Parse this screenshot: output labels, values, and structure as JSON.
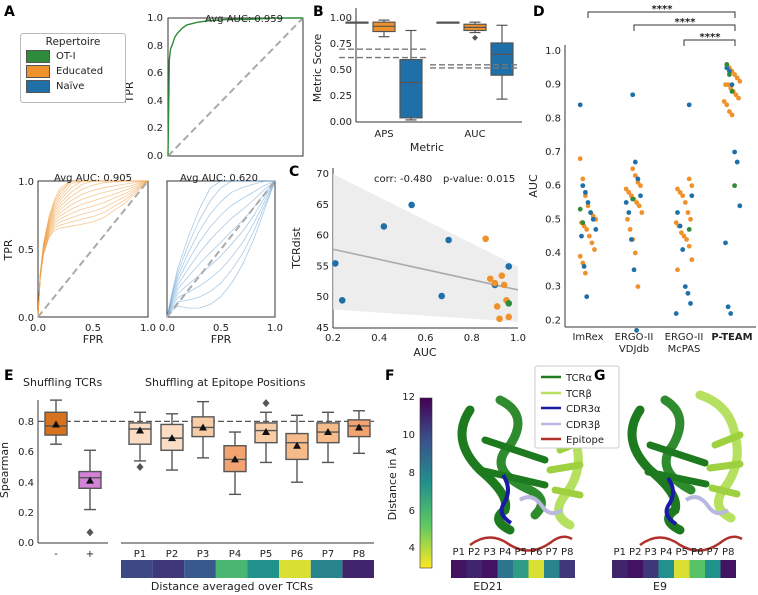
{
  "panels": {
    "A": {
      "letter": "A",
      "legend": {
        "title": "Repertoire",
        "items": [
          {
            "label": "OT-I",
            "color": "#2e8b3a"
          },
          {
            "label": "Educated",
            "color": "#f0922b"
          },
          {
            "label": "Naïve",
            "color": "#1f6fa8"
          }
        ]
      },
      "top_title": "Avg AUC: 0.959",
      "left_title": "Avg AUC: 0.905",
      "right_title": "Avg AUC: 0.620",
      "tpr_label": "TPR",
      "fpr_label": "FPR",
      "y_ticks": [
        "0.0",
        "0.2",
        "0.4",
        "0.6",
        "0.8",
        "1.0"
      ],
      "y_ticks_short": [
        "0.0",
        "0.5",
        "1.0"
      ],
      "x_ticks": [
        "0.0",
        "0.5",
        "1.0"
      ]
    },
    "B": {
      "letter": "B",
      "ylabel": "Metric Score",
      "xlabel": "Metric",
      "categories": [
        "APS",
        "AUC"
      ],
      "y_ticks": [
        "0.00",
        "0.25",
        "0.50",
        "0.75",
        "1.00"
      ]
    },
    "C": {
      "letter": "C",
      "corr_text": "corr: -0.480",
      "pvalue_text": "p-value: 0.015",
      "ylabel": "TCRdist",
      "xlabel": "AUC",
      "y_ticks": [
        "45",
        "50",
        "55",
        "60",
        "65",
        "70"
      ],
      "x_ticks": [
        "0.2",
        "0.4",
        "0.6",
        "0.8",
        "1.0"
      ]
    },
    "D": {
      "letter": "D",
      "ylabel": "AUC",
      "stars": [
        "****",
        "****",
        "****"
      ],
      "y_ticks": [
        "0.2",
        "0.3",
        "0.4",
        "0.5",
        "0.6",
        "0.7",
        "0.8",
        "0.9",
        "1.0"
      ],
      "categories": [
        {
          "line1": "ImRex",
          "line2": ""
        },
        {
          "line1": "ERGO-II",
          "line2": "VDJdb"
        },
        {
          "line1": "ERGO-II",
          "line2": "McPAS"
        },
        {
          "line1": "P-TEAM",
          "line2": ""
        }
      ]
    },
    "E": {
      "letter": "E",
      "ylabel": "Spearman",
      "left_title": "Shuffling TCRs",
      "right_title": "Shuffling at Epitope Positions",
      "left_ticks": [
        "-",
        "+"
      ],
      "positions": [
        "P1",
        "P2",
        "P3",
        "P4",
        "P5",
        "P6",
        "P7",
        "P8"
      ],
      "y_ticks": [
        "0.0",
        "0.2",
        "0.4",
        "0.6",
        "0.8"
      ],
      "bottom_label": "Distance averaged over TCRs"
    },
    "F": {
      "letter": "F",
      "colorbar_label": "Distance in Å",
      "colorbar_ticks": [
        "4",
        "6",
        "8",
        "10",
        "12"
      ],
      "struct_legend": [
        {
          "label": "TCRα",
          "color": "#1e7a1e"
        },
        {
          "label": "TCRβ",
          "color": "#b5e060"
        },
        {
          "label": "CDR3α",
          "color": "#1a1aa8"
        },
        {
          "label": "CDR3β",
          "color": "#b8b8e0"
        },
        {
          "label": "Epitope",
          "color": "#b0302a"
        }
      ],
      "positions": [
        "P1",
        "P2",
        "P3",
        "P4",
        "P5",
        "P6",
        "P7",
        "P8"
      ],
      "name": "ED21"
    },
    "G": {
      "letter": "G",
      "positions": [
        "P1",
        "P2",
        "P3",
        "P4",
        "P5",
        "P6",
        "P7",
        "P8"
      ],
      "name": "E9"
    }
  },
  "chart_data": [
    {
      "id": "A-top",
      "type": "line",
      "title": "Avg AUC: 0.959",
      "xlabel": "",
      "ylabel": "TPR",
      "xlim": [
        0,
        1
      ],
      "ylim": [
        0,
        1
      ],
      "series": [
        {
          "name": "OT-I",
          "x": [
            0,
            0.01,
            0.02,
            0.03,
            0.05,
            0.07,
            0.09,
            0.11,
            0.14,
            0.18,
            0.22,
            0.3,
            0.45,
            0.6,
            0.8,
            1.0
          ],
          "y": [
            0,
            0.7,
            0.78,
            0.8,
            0.86,
            0.89,
            0.91,
            0.93,
            0.95,
            0.96,
            0.97,
            0.98,
            0.99,
            0.99,
            1.0,
            1.0
          ]
        },
        {
          "name": "chance",
          "x": [
            0,
            1
          ],
          "y": [
            0,
            1
          ]
        }
      ]
    },
    {
      "id": "A-left",
      "type": "line",
      "title": "Avg AUC: 0.905",
      "xlabel": "FPR",
      "ylabel": "TPR",
      "xlim": [
        0,
        1
      ],
      "ylim": [
        0,
        1
      ],
      "series": [
        {
          "name": "Educated (mean)",
          "x": [
            0,
            0.02,
            0.05,
            0.1,
            0.15,
            0.2,
            0.3,
            0.4,
            0.5,
            0.6,
            0.8,
            1.0
          ],
          "y": [
            0,
            0.3,
            0.5,
            0.66,
            0.75,
            0.8,
            0.87,
            0.92,
            0.95,
            0.97,
            0.99,
            1.0
          ]
        },
        {
          "name": "chance",
          "x": [
            0,
            1
          ],
          "y": [
            0,
            1
          ]
        }
      ]
    },
    {
      "id": "A-right",
      "type": "line",
      "title": "Avg AUC: 0.620",
      "xlabel": "FPR",
      "ylabel": "",
      "xlim": [
        0,
        1
      ],
      "ylim": [
        0,
        1
      ],
      "series": [
        {
          "name": "Naïve (mean)",
          "x": [
            0,
            0.05,
            0.1,
            0.2,
            0.3,
            0.4,
            0.5,
            0.6,
            0.7,
            0.8,
            0.9,
            1.0
          ],
          "y": [
            0,
            0.12,
            0.22,
            0.33,
            0.43,
            0.52,
            0.6,
            0.68,
            0.75,
            0.83,
            0.92,
            1.0
          ]
        },
        {
          "name": "chance",
          "x": [
            0,
            1
          ],
          "y": [
            0,
            1
          ]
        }
      ]
    },
    {
      "id": "B",
      "type": "box",
      "xlabel": "Metric",
      "ylabel": "Metric Score",
      "ylim": [
        -0.02,
        1.02
      ],
      "categories": [
        "APS",
        "AUC"
      ],
      "series": [
        {
          "name": "OT-I",
          "color": "#2e8b3a",
          "boxes": [
            {
              "min": 0.96,
              "q1": 0.96,
              "median": 0.96,
              "q3": 0.96,
              "max": 0.96
            },
            {
              "min": 0.96,
              "q1": 0.96,
              "median": 0.96,
              "q3": 0.96,
              "max": 0.96
            }
          ]
        },
        {
          "name": "Educated",
          "color": "#f0922b",
          "boxes": [
            {
              "min": 0.82,
              "q1": 0.87,
              "median": 0.92,
              "q3": 0.96,
              "max": 0.98
            },
            {
              "min": 0.86,
              "q1": 0.88,
              "median": 0.91,
              "q3": 0.94,
              "max": 0.96,
              "outliers": [
                0.81
              ]
            }
          ]
        },
        {
          "name": "Naïve",
          "color": "#1f6fa8",
          "boxes": [
            {
              "min": 0.02,
              "q1": 0.04,
              "median": 0.38,
              "q3": 0.6,
              "max": 0.88
            },
            {
              "min": 0.22,
              "q1": 0.45,
              "median": 0.65,
              "q3": 0.76,
              "max": 0.93
            }
          ]
        }
      ],
      "reference_lines": [
        {
          "category": "APS",
          "values": [
            0.7,
            0.62
          ]
        },
        {
          "category": "AUC",
          "values": [
            0.55,
            0.52
          ]
        }
      ]
    },
    {
      "id": "C",
      "type": "scatter",
      "xlabel": "AUC",
      "ylabel": "TCRdist",
      "xlim": [
        0.2,
        1.0
      ],
      "ylim": [
        45,
        71
      ],
      "points": [
        {
          "x": 0.21,
          "y": 55.5,
          "group": "Naïve"
        },
        {
          "x": 0.24,
          "y": 49.5,
          "group": "Naïve"
        },
        {
          "x": 0.42,
          "y": 61.5,
          "group": "Naïve"
        },
        {
          "x": 0.54,
          "y": 65,
          "group": "Naïve"
        },
        {
          "x": 0.67,
          "y": 50.2,
          "group": "Naïve"
        },
        {
          "x": 0.7,
          "y": 59.3,
          "group": "Naïve"
        },
        {
          "x": 0.86,
          "y": 59.5,
          "group": "Educated"
        },
        {
          "x": 0.88,
          "y": 53,
          "group": "Educated"
        },
        {
          "x": 0.9,
          "y": 52,
          "group": "Naïve"
        },
        {
          "x": 0.91,
          "y": 48.5,
          "group": "Educated"
        },
        {
          "x": 0.92,
          "y": 46.5,
          "group": "Educated"
        },
        {
          "x": 0.93,
          "y": 53.5,
          "group": "Educated"
        },
        {
          "x": 0.94,
          "y": 52,
          "group": "Educated"
        },
        {
          "x": 0.95,
          "y": 49.5,
          "group": "Educated"
        },
        {
          "x": 0.96,
          "y": 46.8,
          "group": "Educated"
        },
        {
          "x": 0.96,
          "y": 55,
          "group": "Naïve"
        },
        {
          "x": 0.96,
          "y": 49,
          "group": "OT-I"
        },
        {
          "x": 0.9,
          "y": 52.3,
          "group": "Educated"
        }
      ],
      "regression": {
        "x": [
          0.2,
          1.0
        ],
        "y": [
          57.8,
          51.2
        ]
      }
    },
    {
      "id": "D",
      "type": "strip",
      "ylabel": "AUC",
      "ylim": [
        0.18,
        1.0
      ],
      "categories": [
        "ImRex",
        "ERGO-II VDJdb",
        "ERGO-II McPAS",
        "P-TEAM"
      ],
      "groups": {
        "ImRex": {
          "Naïve": [
            0.84,
            0.6,
            0.58,
            0.55,
            0.52,
            0.5,
            0.47,
            0.45,
            0.36,
            0.27
          ],
          "Educated": [
            0.68,
            0.62,
            0.57,
            0.54,
            0.52,
            0.51,
            0.5,
            0.49,
            0.48,
            0.47,
            0.45,
            0.43,
            0.41,
            0.39,
            0.37,
            0.34
          ],
          "OT-I": [
            0.53,
            0.49
          ]
        },
        "ERGO-II VDJdb": {
          "Naïve": [
            0.87,
            0.67,
            0.62,
            0.57,
            0.55,
            0.52,
            0.44,
            0.35,
            0.17
          ],
          "Educated": [
            0.65,
            0.63,
            0.61,
            0.6,
            0.59,
            0.58,
            0.57,
            0.56,
            0.55,
            0.54,
            0.52,
            0.5,
            0.47,
            0.44,
            0.4,
            0.3
          ],
          "OT-I": [
            0.56
          ]
        },
        "ERGO-II McPAS": {
          "Naïve": [
            0.84,
            0.57,
            0.52,
            0.48,
            0.41,
            0.3,
            0.28,
            0.25,
            0.22
          ],
          "Educated": [
            0.62,
            0.6,
            0.59,
            0.58,
            0.57,
            0.55,
            0.52,
            0.5,
            0.49,
            0.48,
            0.46,
            0.45,
            0.44,
            0.42,
            0.38,
            0.35
          ],
          "OT-I": [
            0.47
          ]
        },
        "P-TEAM": {
          "Naïve": [
            0.95,
            0.94,
            0.9,
            0.7,
            0.67,
            0.54,
            0.43,
            0.24,
            0.22
          ],
          "Educated": [
            0.96,
            0.95,
            0.94,
            0.93,
            0.92,
            0.91,
            0.9,
            0.9,
            0.89,
            0.88,
            0.87,
            0.86,
            0.85,
            0.84,
            0.82,
            0.81
          ],
          "OT-I": [
            0.96,
            0.93,
            0.88,
            0.6
          ]
        }
      },
      "significance": [
        {
          "from": "ImRex",
          "to": "P-TEAM",
          "label": "****"
        },
        {
          "from": "ERGO-II VDJdb",
          "to": "P-TEAM",
          "label": "****"
        },
        {
          "from": "ERGO-II McPAS",
          "to": "P-TEAM",
          "label": "****"
        }
      ]
    },
    {
      "id": "E",
      "type": "box",
      "ylabel": "Spearman",
      "ylim": [
        -0.02,
        1.0
      ],
      "categories": [
        "-",
        "+",
        "P1",
        "P2",
        "P3",
        "P4",
        "P5",
        "P6",
        "P7",
        "P8"
      ],
      "boxes": [
        {
          "cat": "-",
          "min": 0.65,
          "q1": 0.71,
          "median": 0.77,
          "q3": 0.86,
          "max": 0.94,
          "mean": 0.78,
          "color": "#d7731f"
        },
        {
          "cat": "+",
          "min": 0.22,
          "q1": 0.36,
          "median": 0.43,
          "q3": 0.47,
          "max": 0.61,
          "mean": 0.41,
          "outliers": [
            0.07
          ],
          "color": "#d283d8"
        },
        {
          "cat": "P1",
          "min": 0.54,
          "q1": 0.65,
          "median": 0.75,
          "q3": 0.79,
          "max": 0.86,
          "mean": 0.74,
          "outliers": [
            0.5
          ],
          "color": "#fbdcc4"
        },
        {
          "cat": "P2",
          "min": 0.48,
          "q1": 0.61,
          "median": 0.69,
          "q3": 0.78,
          "max": 0.85,
          "mean": 0.69,
          "color": "#fbdcc4"
        },
        {
          "cat": "P3",
          "min": 0.56,
          "q1": 0.7,
          "median": 0.76,
          "q3": 0.83,
          "max": 0.93,
          "mean": 0.76,
          "color": "#f8cca6"
        },
        {
          "cat": "P4",
          "min": 0.32,
          "q1": 0.47,
          "median": 0.55,
          "q3": 0.64,
          "max": 0.73,
          "mean": 0.55,
          "color": "#f3a36f"
        },
        {
          "cat": "P5",
          "min": 0.53,
          "q1": 0.66,
          "median": 0.74,
          "q3": 0.79,
          "max": 0.86,
          "mean": 0.73,
          "outliers": [
            0.92
          ],
          "color": "#f8cca6"
        },
        {
          "cat": "P6",
          "min": 0.4,
          "q1": 0.55,
          "median": 0.66,
          "q3": 0.72,
          "max": 0.84,
          "mean": 0.64,
          "color": "#f6bb8b"
        },
        {
          "cat": "P7",
          "min": 0.53,
          "q1": 0.66,
          "median": 0.73,
          "q3": 0.79,
          "max": 0.86,
          "mean": 0.73,
          "color": "#f6bb8b"
        },
        {
          "cat": "P8",
          "min": 0.59,
          "q1": 0.7,
          "median": 0.77,
          "q3": 0.81,
          "max": 0.87,
          "mean": 0.76,
          "color": "#f3a36f"
        }
      ],
      "reference_line": 0.8,
      "distance_strip": [
        10.5,
        11.0,
        10.0,
        6.5,
        8.0,
        4.0,
        8.5,
        11.5
      ]
    },
    {
      "id": "F-strip",
      "type": "heatmap",
      "categories": [
        "P1",
        "P2",
        "P3",
        "P4",
        "P5",
        "P6",
        "P7",
        "P8"
      ],
      "values": [
        12.0,
        11.5,
        12.0,
        9.0,
        7.5,
        4.0,
        8.5,
        11.0
      ],
      "colorbar_range": [
        3.5,
        12.5
      ]
    },
    {
      "id": "G-strip",
      "type": "heatmap",
      "categories": [
        "P1",
        "P2",
        "P3",
        "P4",
        "P5",
        "P6",
        "P7",
        "P8"
      ],
      "values": [
        11.5,
        12.0,
        11.0,
        8.0,
        4.0,
        6.0,
        8.0,
        12.0
      ],
      "colorbar_range": [
        3.5,
        12.5
      ]
    }
  ]
}
